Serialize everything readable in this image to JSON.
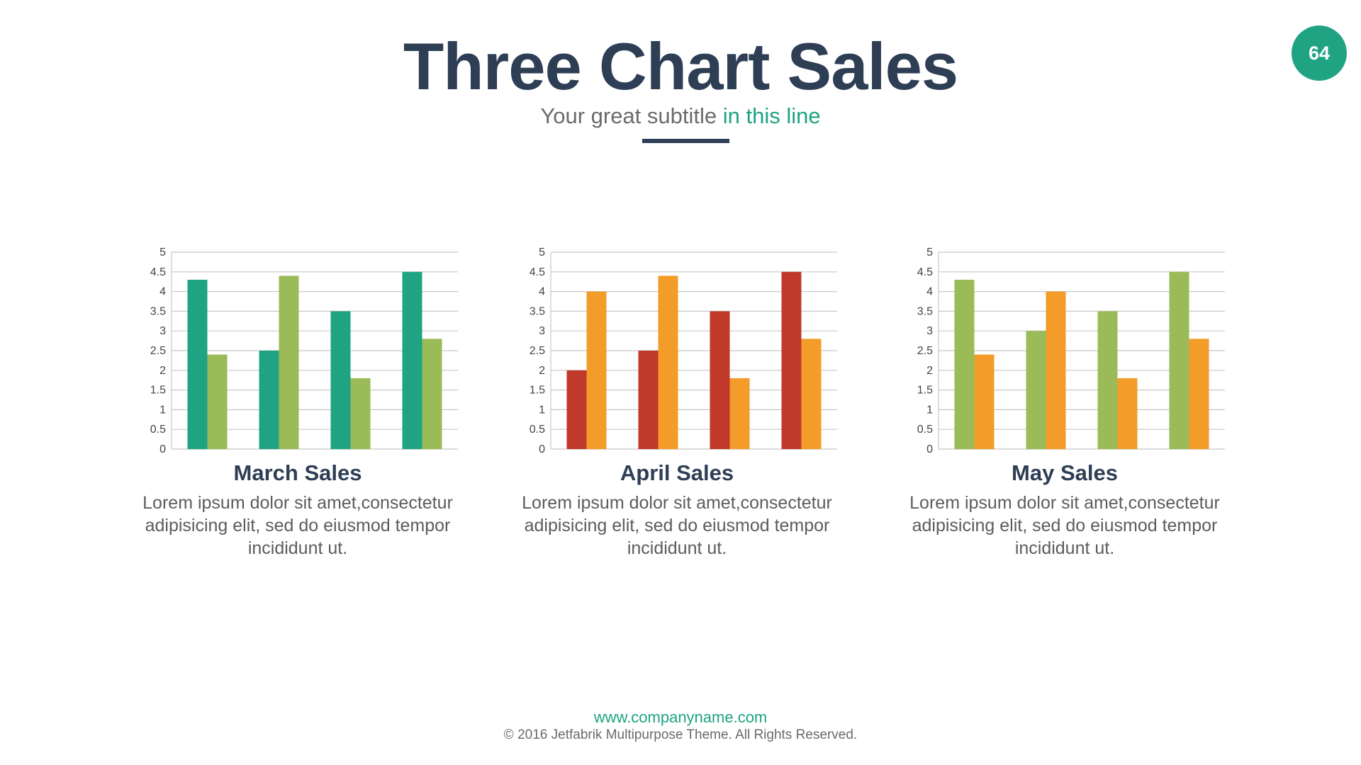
{
  "page_number": "64",
  "header": {
    "title": "Three Chart Sales",
    "subtitle_main": "Your great subtitle",
    "subtitle_accent": "in this line",
    "accent_color": "#1fa383",
    "title_color": "#2e3e54"
  },
  "charts": [
    {
      "title": "March Sales",
      "description": "Lorem ipsum dolor sit amet,consectetur adipisicing elit, sed do eiusmod tempor incididunt ut."
    },
    {
      "title": "April Sales",
      "description": "Lorem ipsum dolor sit amet,consectetur adipisicing elit, sed do eiusmod tempor incididunt ut."
    },
    {
      "title": "May Sales",
      "description": "Lorem ipsum dolor sit amet,consectetur adipisicing elit, sed do eiusmod tempor incididunt ut."
    }
  ],
  "chart_data": [
    {
      "type": "bar",
      "title": "March Sales",
      "categories": [
        "",
        "",
        "",
        ""
      ],
      "series": [
        {
          "values": [
            4.3,
            2.5,
            3.5,
            4.5
          ],
          "color": "#1fa383"
        },
        {
          "values": [
            2.4,
            4.4,
            1.8,
            2.8
          ],
          "color": "#9bbb59"
        }
      ],
      "ylim": [
        0,
        5
      ],
      "yticks": [
        "0",
        "0.5",
        "1",
        "1.5",
        "2",
        "2.5",
        "3",
        "3.5",
        "4",
        "4.5",
        "5"
      ],
      "grid": true
    },
    {
      "type": "bar",
      "title": "April Sales",
      "categories": [
        "",
        "",
        "",
        ""
      ],
      "series": [
        {
          "values": [
            2.0,
            2.5,
            3.5,
            4.5
          ],
          "color": "#c0392b"
        },
        {
          "values": [
            4.0,
            4.4,
            1.8,
            2.8
          ],
          "color": "#f39c29"
        }
      ],
      "ylim": [
        0,
        5
      ],
      "yticks": [
        "0",
        "0.5",
        "1",
        "1.5",
        "2",
        "2.5",
        "3",
        "3.5",
        "4",
        "4.5",
        "5"
      ],
      "grid": true
    },
    {
      "type": "bar",
      "title": "May Sales",
      "categories": [
        "",
        "",
        "",
        ""
      ],
      "series": [
        {
          "values": [
            4.3,
            3.0,
            3.5,
            4.5
          ],
          "color": "#9bbb59"
        },
        {
          "values": [
            2.4,
            4.0,
            1.8,
            2.8
          ],
          "color": "#f39c29"
        }
      ],
      "ylim": [
        0,
        5
      ],
      "yticks": [
        "0",
        "0.5",
        "1",
        "1.5",
        "2",
        "2.5",
        "3",
        "3.5",
        "4",
        "4.5",
        "5"
      ],
      "grid": true
    }
  ],
  "footer": {
    "url": "www.companyname.com",
    "copyright": "© 2016 Jetfabrik Multipurpose Theme. All Rights Reserved."
  }
}
